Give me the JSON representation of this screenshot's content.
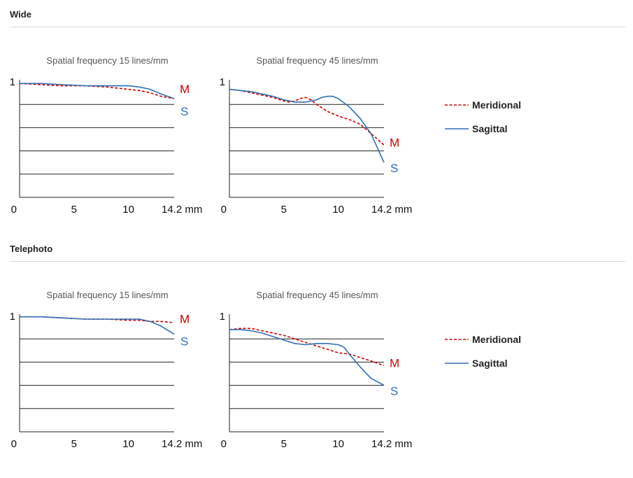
{
  "sections": [
    {
      "title": "Wide",
      "charts": [
        {
          "subtitle": "Spatial frequency 15 lines/mm",
          "m_label": "M",
          "s_label": "S",
          "x_unit_label": "14.2 mm"
        },
        {
          "subtitle": "Spatial frequency 45 lines/mm",
          "m_label": "M",
          "s_label": "S",
          "x_unit_label": "14.2 mm"
        }
      ],
      "legend": {
        "meridional": "Meridional",
        "sagittal": "Sagittal"
      }
    },
    {
      "title": "Telephoto",
      "charts": [
        {
          "subtitle": "Spatial frequency 15 lines/mm",
          "m_label": "M",
          "s_label": "S",
          "x_unit_label": "14.2 mm"
        },
        {
          "subtitle": "Spatial frequency 45 lines/mm",
          "m_label": "M",
          "s_label": "S",
          "x_unit_label": "14.2 mm"
        }
      ],
      "legend": {
        "meridional": "Meridional",
        "sagittal": "Sagittal"
      }
    }
  ],
  "colors": {
    "meridional": "#cc0000",
    "sagittal": "#2f6fb5",
    "grid": "#222222"
  },
  "chart_data": [
    {
      "type": "line",
      "title": "Spatial frequency 15 lines/mm",
      "group": "Wide",
      "xlim": [
        0,
        14.2
      ],
      "ylim": [
        0,
        1
      ],
      "xticks": [
        0,
        5,
        10
      ],
      "xtick_labels": [
        "0",
        "5",
        "10"
      ],
      "yticks": [
        1
      ],
      "ytick_labels": [
        "1"
      ],
      "grid": true,
      "series": [
        {
          "name": "Meridional",
          "x": [
            0,
            2,
            4,
            6,
            8,
            10,
            11,
            12,
            13,
            14.2
          ],
          "y": [
            0.98,
            0.97,
            0.96,
            0.96,
            0.95,
            0.93,
            0.92,
            0.9,
            0.87,
            0.85
          ]
        },
        {
          "name": "Sagittal",
          "x": [
            0,
            2,
            4,
            6,
            8,
            10,
            11,
            12,
            13,
            14.2
          ],
          "y": [
            0.98,
            0.98,
            0.97,
            0.96,
            0.96,
            0.96,
            0.95,
            0.93,
            0.89,
            0.85
          ]
        }
      ]
    },
    {
      "type": "line",
      "title": "Spatial frequency 45 lines/mm",
      "group": "Wide",
      "xlim": [
        0,
        14.2
      ],
      "ylim": [
        0,
        1
      ],
      "xticks": [
        0,
        5,
        10
      ],
      "xtick_labels": [
        "0",
        "5",
        "10"
      ],
      "yticks": [
        1
      ],
      "ytick_labels": [
        "1"
      ],
      "grid": true,
      "series": [
        {
          "name": "Meridional",
          "x": [
            0,
            1,
            2,
            3,
            4,
            5,
            5.5,
            6,
            6.5,
            7,
            7.5,
            8,
            9,
            10,
            11,
            12,
            13,
            14.2
          ],
          "y": [
            0.93,
            0.92,
            0.9,
            0.88,
            0.86,
            0.83,
            0.82,
            0.83,
            0.85,
            0.86,
            0.84,
            0.8,
            0.74,
            0.7,
            0.67,
            0.63,
            0.55,
            0.45
          ]
        },
        {
          "name": "Sagittal",
          "x": [
            0,
            1,
            2,
            3,
            4,
            5,
            5.5,
            6,
            7,
            8,
            8.5,
            9,
            9.5,
            10,
            11,
            12,
            13,
            14.2
          ],
          "y": [
            0.93,
            0.92,
            0.91,
            0.89,
            0.87,
            0.84,
            0.83,
            0.82,
            0.82,
            0.84,
            0.86,
            0.87,
            0.87,
            0.85,
            0.78,
            0.68,
            0.55,
            0.3
          ]
        }
      ]
    },
    {
      "type": "line",
      "title": "Spatial frequency 15 lines/mm",
      "group": "Telephoto",
      "xlim": [
        0,
        14.2
      ],
      "ylim": [
        0,
        1
      ],
      "xticks": [
        0,
        5,
        10
      ],
      "xtick_labels": [
        "0",
        "5",
        "10"
      ],
      "yticks": [
        1
      ],
      "ytick_labels": [
        "1"
      ],
      "grid": true,
      "series": [
        {
          "name": "Meridional",
          "x": [
            0,
            2,
            4,
            6,
            8,
            10,
            11,
            12,
            13,
            14.2
          ],
          "y": [
            0.99,
            0.99,
            0.98,
            0.97,
            0.97,
            0.96,
            0.96,
            0.95,
            0.95,
            0.94
          ]
        },
        {
          "name": "Sagittal",
          "x": [
            0,
            2,
            4,
            6,
            8,
            10,
            11,
            12,
            13,
            14.2
          ],
          "y": [
            0.99,
            0.99,
            0.98,
            0.97,
            0.97,
            0.97,
            0.97,
            0.95,
            0.91,
            0.84
          ]
        }
      ]
    },
    {
      "type": "line",
      "title": "Spatial frequency 45 lines/mm",
      "group": "Telephoto",
      "xlim": [
        0,
        14.2
      ],
      "ylim": [
        0,
        1
      ],
      "xticks": [
        0,
        5,
        10
      ],
      "xtick_labels": [
        "0",
        "5",
        "10"
      ],
      "yticks": [
        1
      ],
      "ytick_labels": [
        "1"
      ],
      "grid": true,
      "series": [
        {
          "name": "Meridional",
          "x": [
            0,
            1,
            2,
            3,
            4,
            5,
            6,
            7,
            8,
            9,
            10,
            11,
            12,
            13,
            14.2
          ],
          "y": [
            0.88,
            0.89,
            0.89,
            0.87,
            0.85,
            0.83,
            0.8,
            0.77,
            0.74,
            0.71,
            0.68,
            0.67,
            0.64,
            0.61,
            0.57
          ]
        },
        {
          "name": "Sagittal",
          "x": [
            0,
            1,
            2,
            3,
            4,
            5,
            6,
            7,
            8,
            9,
            10,
            10.5,
            11,
            12,
            13,
            14.2
          ],
          "y": [
            0.88,
            0.88,
            0.87,
            0.85,
            0.82,
            0.79,
            0.76,
            0.75,
            0.76,
            0.76,
            0.75,
            0.73,
            0.67,
            0.56,
            0.46,
            0.4
          ]
        }
      ]
    }
  ]
}
